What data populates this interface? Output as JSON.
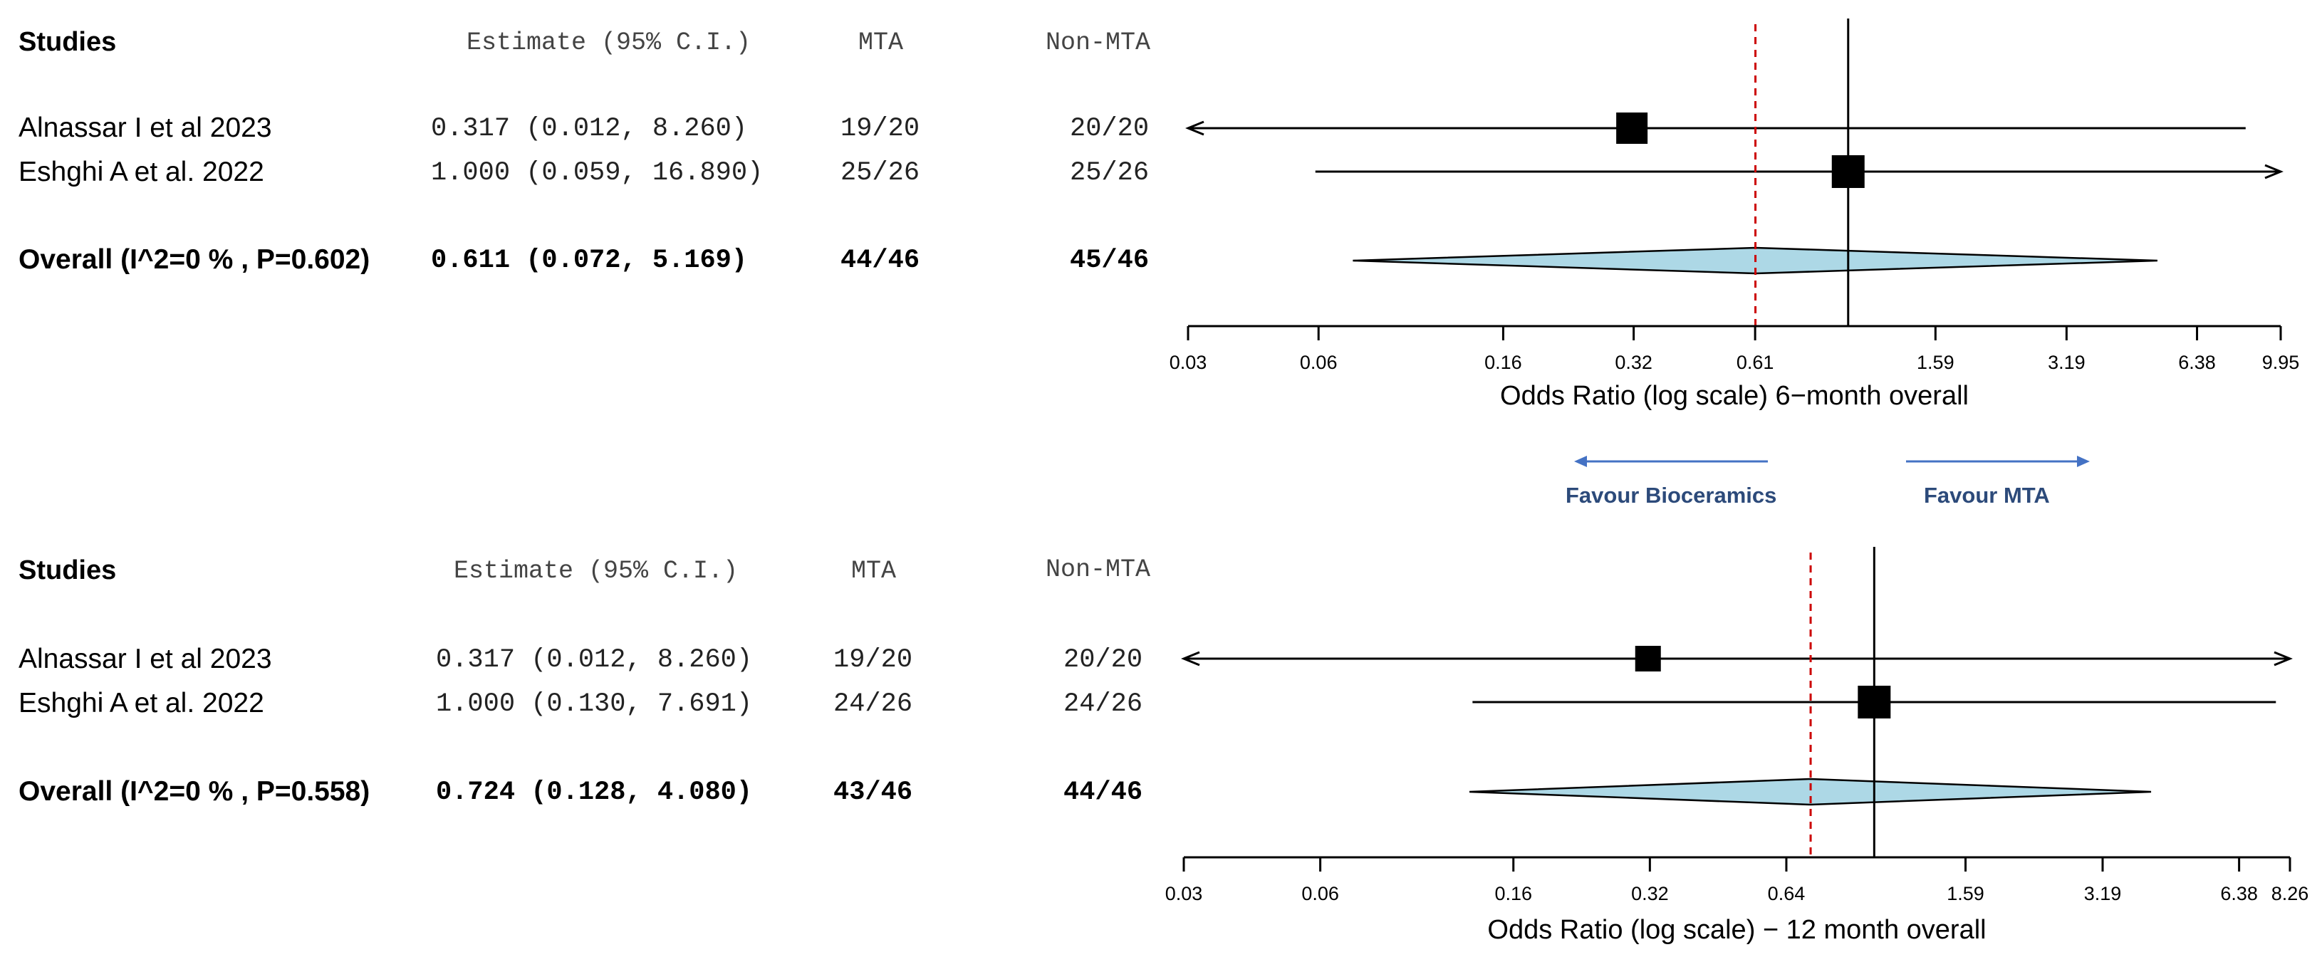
{
  "colors": {
    "diamond": "#add8e6",
    "ref_line": "#cc0000",
    "arrow_blue": "#4472c4",
    "favour_text": "#2c4a7a"
  },
  "favour": {
    "left": "Favour Bioceramics",
    "right": "Favour MTA"
  },
  "chart_data": [
    {
      "type": "forest",
      "headers": {
        "studies": "Studies",
        "estimate": "Estimate (95% C.I.)",
        "mta": "MTA",
        "non_mta": "Non-MTA"
      },
      "xlabel": "Odds Ratio (log scale) 6−month overall",
      "xscale": "log",
      "xlim": [
        0.03,
        9.95
      ],
      "ticks": [
        {
          "v": 0.03,
          "label": "0.03"
        },
        {
          "v": 0.06,
          "label": "0.06"
        },
        {
          "v": 0.16,
          "label": "0.16"
        },
        {
          "v": 0.32,
          "label": "0.32"
        },
        {
          "v": 0.61,
          "label": "0.61"
        },
        {
          "v": 1.59,
          "label": "1.59"
        },
        {
          "v": 3.19,
          "label": "3.19"
        },
        {
          "v": 6.38,
          "label": "6.38"
        },
        {
          "v": 9.95,
          "label": "9.95"
        }
      ],
      "null_line": 1.0,
      "summary_line": 0.611,
      "studies": [
        {
          "name": "Alnassar I et al  2023",
          "estimate": 0.317,
          "ci": [
            0.012,
            8.26
          ],
          "est_text": "0.317 (0.012,  8.260)",
          "mta": "19/20",
          "non_mta": "20/20",
          "arrow_left": true,
          "arrow_right": false,
          "box_size": 44
        },
        {
          "name": "Eshghi A et al. 2022",
          "estimate": 1.0,
          "ci": [
            0.059,
            16.89
          ],
          "est_text": "1.000 (0.059, 16.890)",
          "mta": "25/26",
          "non_mta": "25/26",
          "arrow_left": false,
          "arrow_right": true,
          "box_size": 46
        }
      ],
      "overall": {
        "name": "Overall (I^2=0 % , P=0.602)",
        "estimate": 0.611,
        "ci": [
          0.072,
          5.169
        ],
        "est_text": "0.611 (0.072,  5.169)",
        "mta": "44/46",
        "non_mta": "45/46"
      }
    },
    {
      "type": "forest",
      "headers": {
        "studies": "Studies",
        "estimate": "Estimate (95% C.I.)",
        "mta": "MTA",
        "non_mta": "Non-MTA"
      },
      "xlabel": "Odds Ratio (log scale) − 12 month overall",
      "xscale": "log",
      "xlim": [
        0.03,
        8.26
      ],
      "ticks": [
        {
          "v": 0.03,
          "label": "0.03"
        },
        {
          "v": 0.06,
          "label": "0.06"
        },
        {
          "v": 0.16,
          "label": "0.16"
        },
        {
          "v": 0.32,
          "label": "0.32"
        },
        {
          "v": 0.64,
          "label": "0.64"
        },
        {
          "v": 1.59,
          "label": "1.59"
        },
        {
          "v": 3.19,
          "label": "3.19"
        },
        {
          "v": 6.38,
          "label": "6.38"
        },
        {
          "v": 8.26,
          "label": "8.26"
        }
      ],
      "null_line": 1.0,
      "summary_line": 0.724,
      "studies": [
        {
          "name": "Alnassar I et al  2023",
          "estimate": 0.317,
          "ci": [
            0.012,
            8.26
          ],
          "est_text": "0.317 (0.012, 8.260)",
          "mta": "19/20",
          "non_mta": "20/20",
          "arrow_left": true,
          "arrow_right": true,
          "box_size": 36
        },
        {
          "name": "Eshghi A et al. 2022",
          "estimate": 1.0,
          "ci": [
            0.13,
            7.691
          ],
          "est_text": "1.000 (0.130, 7.691)",
          "mta": "24/26",
          "non_mta": "24/26",
          "arrow_left": false,
          "arrow_right": false,
          "box_size": 46
        }
      ],
      "overall": {
        "name": "Overall (I^2=0 % , P=0.558)",
        "estimate": 0.724,
        "ci": [
          0.128,
          4.08
        ],
        "est_text": "0.724 (0.128, 4.080)",
        "mta": "43/46",
        "non_mta": "44/46"
      }
    }
  ]
}
